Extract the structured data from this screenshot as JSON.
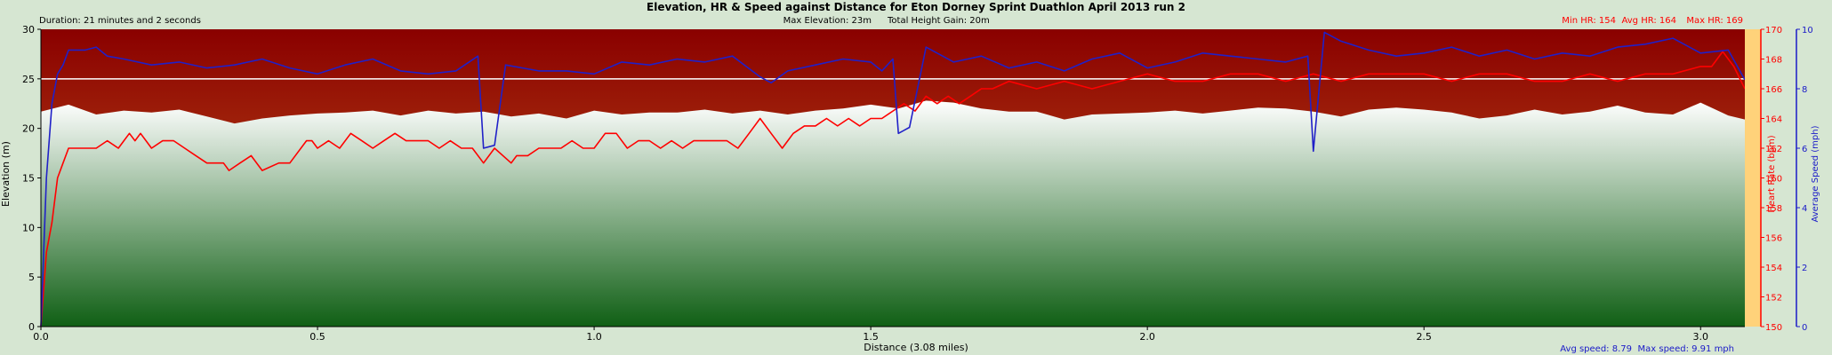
{
  "header": {
    "title": "Elevation, HR & Speed against Distance for Eton Dorney Sprint Duathlon April 2013 run 2",
    "duration": "Duration: 21 minutes and 2 seconds",
    "max_elevation": "Max Elevation: 23m",
    "total_height_gain": "Total Height Gain: 20m",
    "hr_min": "Min HR: 154",
    "hr_avg": "Avg HR: 164",
    "hr_max": "Max HR: 169"
  },
  "footer": {
    "avg_speed": "Avg speed: 8.79",
    "max_speed": "Max speed: 9.91 mph"
  },
  "colors": {
    "background": "#d6e6d2",
    "band_top": "#8a0000",
    "band_bottom": "#c8641e",
    "elevation_top": "#ffffff",
    "elevation_bottom": "#0f5f14",
    "hr_line": "#ff0000",
    "speed_line": "#2020c8",
    "threshold_line": "#ffffff",
    "hr_axis": "#ff0000",
    "speed_axis": "#1a1ac8",
    "hr_axis_fill": "#ffd27a"
  },
  "chart_data": {
    "type": "area",
    "xlabel": "Distance (3.08 miles)",
    "x_ticks": [
      "0.0",
      "0.5",
      "1.0",
      "1.5",
      "2.0",
      "2.5",
      "3.0"
    ],
    "x_tick_values": [
      0,
      0.5,
      1.0,
      1.5,
      2.0,
      2.5,
      3.0
    ],
    "xlim": [
      0,
      3.08
    ],
    "grid": false,
    "axes": {
      "elevation": {
        "label": "Elevation (m)",
        "ylim": [
          0,
          30
        ],
        "ticks": [
          "0",
          "5",
          "10",
          "15",
          "20",
          "25",
          "30"
        ],
        "tick_values": [
          0,
          5,
          10,
          15,
          20,
          25,
          30
        ]
      },
      "heart_rate": {
        "label": "Heart Rate (bpm)",
        "ylim": [
          150,
          170
        ],
        "ticks": [
          "150",
          "152",
          "154",
          "156",
          "158",
          "160",
          "162",
          "164",
          "166",
          "168",
          "170"
        ],
        "tick_values": [
          150,
          152,
          154,
          156,
          158,
          160,
          162,
          164,
          166,
          168,
          170
        ]
      },
      "speed": {
        "label": "Average Speed (mph)",
        "ylim": [
          0,
          10
        ],
        "ticks": [
          "0",
          "2",
          "4",
          "6",
          "8",
          "10"
        ],
        "tick_values": [
          0,
          2,
          4,
          6,
          8,
          10
        ]
      }
    },
    "reference_line": {
      "axis": "elevation",
      "value": 25
    },
    "elevation": {
      "x": [
        0,
        0.05,
        0.1,
        0.15,
        0.2,
        0.25,
        0.3,
        0.35,
        0.4,
        0.45,
        0.5,
        0.55,
        0.6,
        0.65,
        0.7,
        0.75,
        0.8,
        0.85,
        0.9,
        0.95,
        1.0,
        1.05,
        1.1,
        1.15,
        1.2,
        1.25,
        1.3,
        1.35,
        1.4,
        1.45,
        1.5,
        1.55,
        1.6,
        1.65,
        1.7,
        1.75,
        1.8,
        1.85,
        1.9,
        1.95,
        2.0,
        2.05,
        2.1,
        2.15,
        2.2,
        2.25,
        2.3,
        2.35,
        2.4,
        2.45,
        2.5,
        2.55,
        2.6,
        2.65,
        2.7,
        2.75,
        2.8,
        2.85,
        2.9,
        2.95,
        3.0,
        3.05,
        3.08
      ],
      "values": [
        21.7,
        22.4,
        21.4,
        21.8,
        21.6,
        21.9,
        21.2,
        20.5,
        21.0,
        21.3,
        21.5,
        21.6,
        21.8,
        21.3,
        21.8,
        21.5,
        21.7,
        21.2,
        21.5,
        21.0,
        21.8,
        21.4,
        21.6,
        21.6,
        21.9,
        21.5,
        21.8,
        21.4,
        21.8,
        22.0,
        22.4,
        22.0,
        22.8,
        22.6,
        22.0,
        21.7,
        21.7,
        20.9,
        21.4,
        21.5,
        21.6,
        21.8,
        21.5,
        21.8,
        22.1,
        22.0,
        21.7,
        21.2,
        21.9,
        22.1,
        21.9,
        21.6,
        21.0,
        21.3,
        21.9,
        21.4,
        21.7,
        22.3,
        21.6,
        21.4,
        22.6,
        21.3,
        20.9
      ]
    },
    "series": [
      {
        "name": "Heart Rate",
        "axis": "heart_rate",
        "x": [
          0,
          0.01,
          0.02,
          0.03,
          0.04,
          0.05,
          0.06,
          0.1,
          0.12,
          0.14,
          0.15,
          0.16,
          0.17,
          0.18,
          0.19,
          0.2,
          0.22,
          0.24,
          0.26,
          0.28,
          0.3,
          0.33,
          0.34,
          0.36,
          0.38,
          0.4,
          0.43,
          0.45,
          0.48,
          0.49,
          0.5,
          0.52,
          0.54,
          0.56,
          0.58,
          0.6,
          0.62,
          0.64,
          0.66,
          0.68,
          0.7,
          0.72,
          0.74,
          0.76,
          0.78,
          0.8,
          0.82,
          0.85,
          0.86,
          0.88,
          0.9,
          0.92,
          0.94,
          0.96,
          0.98,
          1.0,
          1.02,
          1.04,
          1.06,
          1.08,
          1.1,
          1.12,
          1.14,
          1.16,
          1.18,
          1.2,
          1.22,
          1.24,
          1.26,
          1.28,
          1.3,
          1.32,
          1.34,
          1.36,
          1.38,
          1.4,
          1.42,
          1.44,
          1.46,
          1.48,
          1.5,
          1.52,
          1.54,
          1.56,
          1.58,
          1.6,
          1.62,
          1.64,
          1.66,
          1.68,
          1.7,
          1.72,
          1.75,
          1.8,
          1.85,
          1.9,
          1.95,
          2.0,
          2.05,
          2.1,
          2.15,
          2.2,
          2.25,
          2.3,
          2.35,
          2.4,
          2.45,
          2.5,
          2.55,
          2.6,
          2.65,
          2.7,
          2.75,
          2.8,
          2.85,
          2.9,
          2.95,
          3.0,
          3.02,
          3.04,
          3.06,
          3.08
        ],
        "values": [
          150,
          155,
          157,
          160,
          161,
          162,
          162,
          162,
          162.5,
          162,
          162.5,
          163,
          162.5,
          163,
          162.5,
          162,
          162.5,
          162.5,
          162,
          161.5,
          161,
          161,
          160.5,
          161,
          161.5,
          160.5,
          161,
          161,
          162.5,
          162.5,
          162,
          162.5,
          162,
          163,
          162.5,
          162,
          162.5,
          163,
          162.5,
          162.5,
          162.5,
          162,
          162.5,
          162,
          162,
          161,
          162,
          161,
          161.5,
          161.5,
          162,
          162,
          162,
          162.5,
          162,
          162,
          163,
          163,
          162,
          162.5,
          162.5,
          162,
          162.5,
          162,
          162.5,
          162.5,
          162.5,
          162.5,
          162,
          163,
          164,
          163,
          162,
          163,
          163.5,
          163.5,
          164,
          163.5,
          164,
          163.5,
          164,
          164,
          164.5,
          165,
          164.5,
          165.5,
          165,
          165.5,
          165,
          165.5,
          166,
          166,
          166.5,
          166,
          166.5,
          166,
          166.5,
          167,
          166.5,
          166.5,
          167,
          167,
          166.5,
          167,
          166.5,
          167,
          167,
          167,
          166.5,
          167,
          167,
          166.5,
          166.5,
          167,
          166.5,
          167,
          167,
          167.5,
          167.5,
          168.5,
          167.5,
          166
        ]
      },
      {
        "name": "Average Speed",
        "axis": "speed",
        "x": [
          0,
          0.01,
          0.02,
          0.03,
          0.04,
          0.05,
          0.08,
          0.1,
          0.12,
          0.15,
          0.2,
          0.25,
          0.3,
          0.35,
          0.4,
          0.45,
          0.5,
          0.55,
          0.6,
          0.65,
          0.7,
          0.75,
          0.79,
          0.8,
          0.82,
          0.84,
          0.9,
          0.95,
          1.0,
          1.05,
          1.1,
          1.15,
          1.2,
          1.25,
          1.3,
          1.32,
          1.35,
          1.4,
          1.45,
          1.5,
          1.52,
          1.54,
          1.55,
          1.57,
          1.6,
          1.65,
          1.7,
          1.75,
          1.8,
          1.85,
          1.9,
          1.95,
          2.0,
          2.05,
          2.1,
          2.15,
          2.2,
          2.25,
          2.29,
          2.3,
          2.32,
          2.35,
          2.4,
          2.45,
          2.5,
          2.55,
          2.6,
          2.65,
          2.7,
          2.75,
          2.8,
          2.85,
          2.9,
          2.95,
          3.0,
          3.05,
          3.08
        ],
        "values": [
          0,
          5,
          7.5,
          8.5,
          8.8,
          9.3,
          9.3,
          9.4,
          9.1,
          9.0,
          8.8,
          8.9,
          8.7,
          8.8,
          9.0,
          8.7,
          8.5,
          8.8,
          9.0,
          8.6,
          8.5,
          8.6,
          9.1,
          6.0,
          6.1,
          8.8,
          8.6,
          8.6,
          8.5,
          8.9,
          8.8,
          9.0,
          8.9,
          9.1,
          8.4,
          8.2,
          8.6,
          8.8,
          9.0,
          8.9,
          8.6,
          9.0,
          6.5,
          6.7,
          9.4,
          8.9,
          9.1,
          8.7,
          8.9,
          8.6,
          9.0,
          9.2,
          8.7,
          8.9,
          9.2,
          9.1,
          9.0,
          8.9,
          9.1,
          5.9,
          9.9,
          9.6,
          9.3,
          9.1,
          9.2,
          9.4,
          9.1,
          9.3,
          9.0,
          9.2,
          9.1,
          9.4,
          9.5,
          9.7,
          9.2,
          9.3,
          8.3
        ]
      }
    ]
  }
}
